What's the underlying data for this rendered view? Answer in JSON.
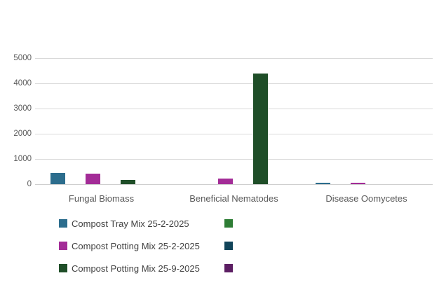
{
  "chart_data": {
    "type": "bar",
    "title": "",
    "categories": [
      "Fungal Biomass",
      "Beneficial Nematodes",
      "Disease Oomycetes"
    ],
    "series": [
      {
        "name": "Compost Tray Mix 25-2-2025",
        "color": "#2C6D8D",
        "values": [
          450,
          0,
          45
        ]
      },
      {
        "name": "",
        "color": "#2E7D35",
        "values": [
          0,
          0,
          0
        ]
      },
      {
        "name": "Compost Potting Mix 25-2-2025",
        "color": "#A32C97",
        "values": [
          430,
          210,
          45
        ]
      },
      {
        "name": "",
        "color": "#114459",
        "values": [
          0,
          0,
          0
        ]
      },
      {
        "name": "Compost Potting Mix 25-9-2025",
        "color": "#1F4E28",
        "values": [
          170,
          4400,
          0
        ]
      },
      {
        "name": "",
        "color": "#5C1E63",
        "values": [
          0,
          0,
          0
        ]
      }
    ],
    "xlabel": "",
    "ylabel": "",
    "ylim": [
      0,
      5000
    ],
    "yticks": [
      "0",
      "1000",
      "2000",
      "3000",
      "4000",
      "5000"
    ],
    "grid": true,
    "legend_position": "bottom",
    "legend_columns": 2
  },
  "colors": {
    "gridline": "#d9d9d9",
    "axis_line": "#cfcfcf",
    "tick_text": "#595959",
    "category_text": "#595959",
    "legend_text": "#404040",
    "background": "#ffffff"
  },
  "legend": {
    "rows": [
      {
        "col1": {
          "color": "#2C6D8D",
          "label": "Compost Tray Mix 25-2-2025"
        },
        "col2": {
          "color": "#2E7D35",
          "label": ""
        }
      },
      {
        "col1": {
          "color": "#A32C97",
          "label": "Compost Potting Mix 25-2-2025"
        },
        "col2": {
          "color": "#114459",
          "label": ""
        }
      },
      {
        "col1": {
          "color": "#1F4E28",
          "label": "Compost Potting Mix 25-9-2025"
        },
        "col2": {
          "color": "#5C1E63",
          "label": ""
        }
      }
    ]
  }
}
